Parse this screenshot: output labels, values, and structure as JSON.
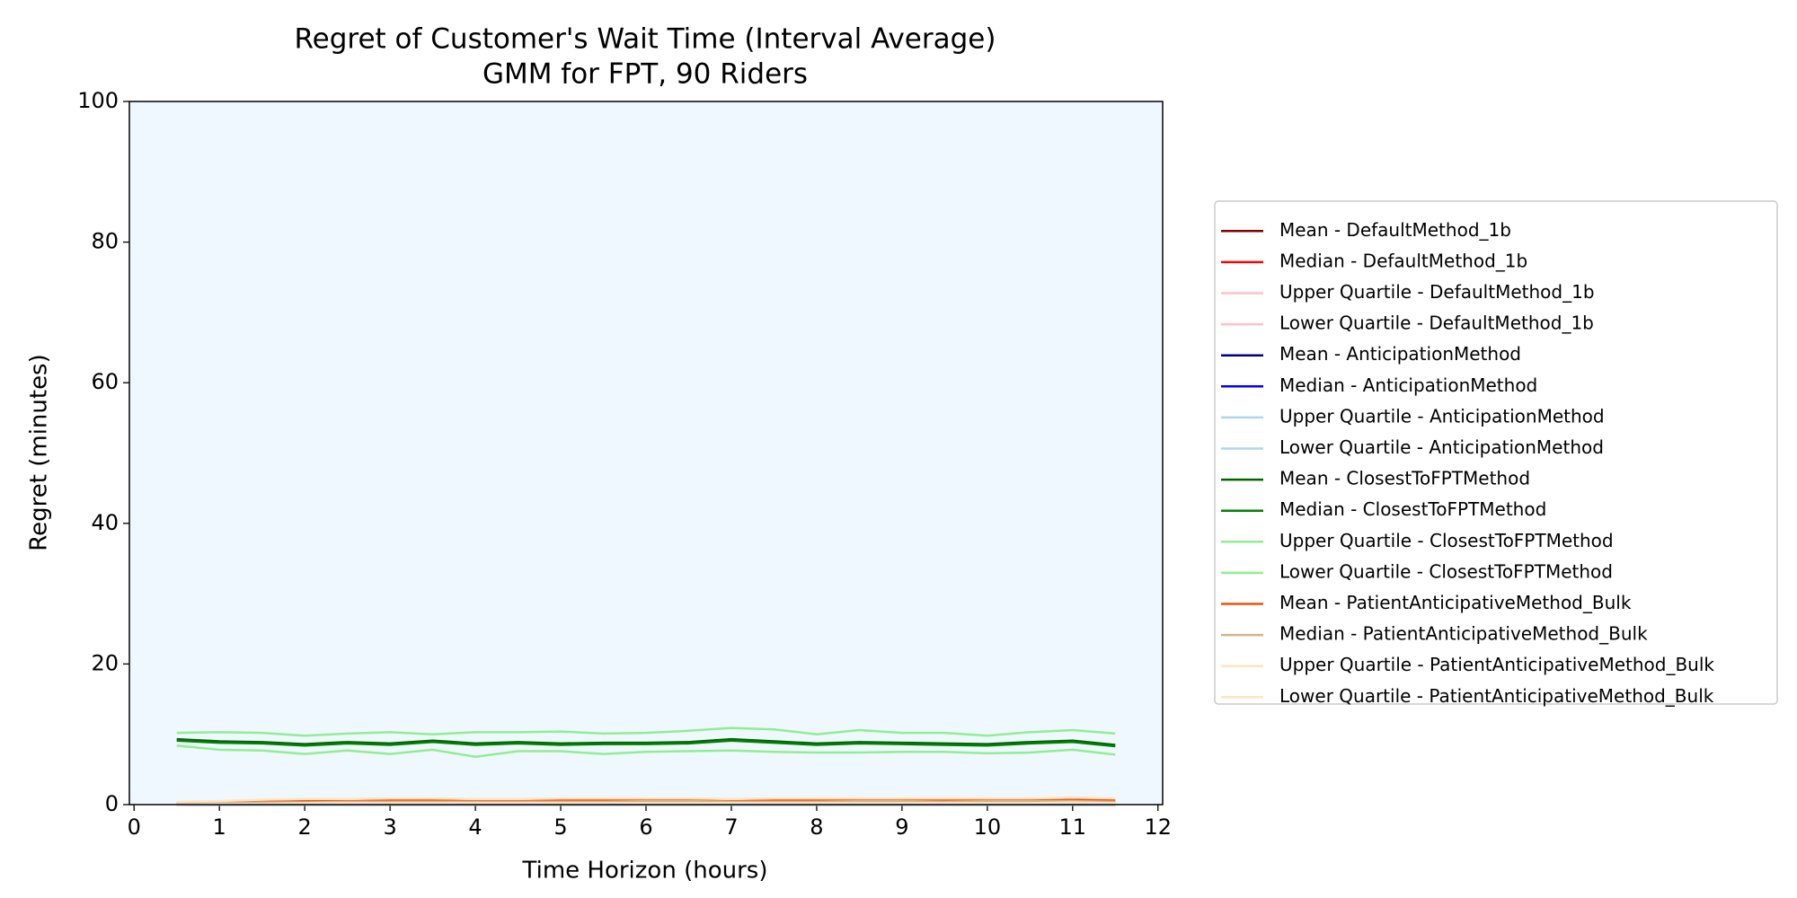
{
  "chart_data": {
    "type": "line",
    "title": "Regret of Customer's Wait Time (Interval Average)",
    "subtitle": "GMM for FPT, 90 Riders",
    "xlabel": "Time Horizon (hours)",
    "ylabel": "Regret (minutes)",
    "x": [
      0.5,
      1,
      1.5,
      2,
      2.5,
      3,
      3.5,
      4,
      4.5,
      5,
      5.5,
      6,
      6.5,
      7,
      7.5,
      8,
      8.5,
      9,
      9.5,
      10,
      10.5,
      11,
      11.5
    ],
    "xlim": [
      -0.055,
      12.055
    ],
    "xticks": [
      0,
      1,
      2,
      3,
      4,
      5,
      6,
      7,
      8,
      9,
      10,
      11,
      12
    ],
    "ylim": [
      0,
      100
    ],
    "yticks": [
      0,
      20,
      40,
      60,
      80,
      100
    ],
    "grid": false,
    "legend": "outside right",
    "background": "#f0f8ff",
    "series": [
      {
        "name": "Mean - DefaultMethod_1b",
        "color": "#800000",
        "values": [
          0,
          0,
          0,
          0,
          0,
          0,
          0,
          0,
          0,
          0,
          0,
          0,
          0,
          0,
          0,
          0,
          0,
          0,
          0,
          0,
          0,
          0,
          0
        ]
      },
      {
        "name": "Median - DefaultMethod_1b",
        "color": "#ff0000",
        "values": [
          0,
          0,
          0,
          0,
          0,
          0,
          0,
          0,
          0,
          0,
          0,
          0,
          0,
          0,
          0,
          0,
          0,
          0,
          0,
          0,
          0,
          0,
          0
        ]
      },
      {
        "name": "Upper Quartile - DefaultMethod_1b",
        "color": "#ffc0cb",
        "values": [
          0,
          0,
          0,
          0,
          0,
          0,
          0,
          0,
          0,
          0,
          0,
          0,
          0,
          0,
          0,
          0,
          0,
          0,
          0,
          0,
          0,
          0,
          0
        ]
      },
      {
        "name": "Lower Quartile - DefaultMethod_1b",
        "color": "#ffc0cb",
        "values": [
          0,
          0,
          0,
          0,
          0,
          0,
          0,
          0,
          0,
          0,
          0,
          0,
          0,
          0,
          0,
          0,
          0,
          0,
          0,
          0,
          0,
          0,
          0
        ]
      },
      {
        "name": "Mean - AnticipationMethod",
        "color": "#000080",
        "values": [
          0,
          0,
          0,
          0,
          0,
          0,
          0,
          0,
          0,
          0,
          0,
          0,
          0,
          0,
          0,
          0,
          0,
          0,
          0,
          0,
          0,
          0,
          0
        ]
      },
      {
        "name": "Median - AnticipationMethod",
        "color": "#0000ff",
        "values": [
          0,
          0,
          0,
          0,
          0,
          0,
          0,
          0,
          0,
          0,
          0,
          0,
          0,
          0,
          0,
          0,
          0,
          0,
          0,
          0,
          0,
          0,
          0
        ]
      },
      {
        "name": "Upper Quartile - AnticipationMethod",
        "color": "#add8e6",
        "values": [
          0,
          0,
          0,
          0,
          0,
          0,
          0,
          0,
          0,
          0,
          0,
          0,
          0,
          0,
          0,
          0,
          0,
          0,
          0,
          0,
          0,
          0,
          0
        ]
      },
      {
        "name": "Lower Quartile - AnticipationMethod",
        "color": "#add8e6",
        "values": [
          0,
          0,
          0,
          0,
          0,
          0,
          0,
          0,
          0,
          0,
          0,
          0,
          0,
          0,
          0,
          0,
          0,
          0,
          0,
          0,
          0,
          0,
          0
        ]
      },
      {
        "name": "Mean - ClosestToFPTMethod",
        "color": "#006400",
        "values": [
          9.3,
          9.0,
          8.9,
          8.6,
          8.9,
          8.7,
          9.1,
          8.7,
          8.9,
          8.7,
          8.8,
          8.8,
          8.9,
          9.3,
          9.0,
          8.7,
          8.9,
          8.8,
          8.7,
          8.6,
          8.9,
          9.1,
          8.5
        ]
      },
      {
        "name": "Median - ClosestToFPTMethod",
        "color": "#008000",
        "values": [
          9.1,
          8.8,
          8.7,
          8.4,
          8.7,
          8.5,
          8.9,
          8.5,
          8.7,
          8.5,
          8.6,
          8.6,
          8.7,
          9.1,
          8.8,
          8.5,
          8.7,
          8.6,
          8.5,
          8.4,
          8.7,
          8.9,
          8.3
        ]
      },
      {
        "name": "Upper Quartile - ClosestToFPTMethod",
        "color": "#90ee90",
        "values": [
          10.2,
          10.3,
          10.2,
          9.8,
          10.1,
          10.3,
          10.0,
          10.3,
          10.3,
          10.4,
          10.1,
          10.2,
          10.5,
          10.9,
          10.7,
          10.0,
          10.6,
          10.2,
          10.2,
          9.8,
          10.3,
          10.6,
          10.1
        ]
      },
      {
        "name": "Lower Quartile - ClosestToFPTMethod",
        "color": "#90ee90",
        "values": [
          8.4,
          7.8,
          7.7,
          7.2,
          7.7,
          7.2,
          7.8,
          6.8,
          7.6,
          7.6,
          7.2,
          7.5,
          7.6,
          7.7,
          7.5,
          7.4,
          7.4,
          7.5,
          7.5,
          7.3,
          7.4,
          7.8,
          7.1
        ]
      },
      {
        "name": "Mean - PatientAnticipativeMethod_Bulk",
        "color": "#e6550d",
        "values": [
          0.2,
          0.3,
          0.4,
          0.5,
          0.5,
          0.6,
          0.6,
          0.5,
          0.5,
          0.6,
          0.6,
          0.6,
          0.6,
          0.5,
          0.6,
          0.6,
          0.6,
          0.6,
          0.6,
          0.6,
          0.6,
          0.7,
          0.6
        ]
      },
      {
        "name": "Median - PatientAnticipativeMethod_Bulk",
        "color": "#d2b48c",
        "values": [
          0.1,
          0.2,
          0.3,
          0.3,
          0.4,
          0.4,
          0.4,
          0.4,
          0.4,
          0.4,
          0.4,
          0.5,
          0.5,
          0.4,
          0.4,
          0.4,
          0.5,
          0.5,
          0.4,
          0.5,
          0.5,
          0.5,
          0.4
        ]
      },
      {
        "name": "Upper Quartile - PatientAnticipativeMethod_Bulk",
        "color": "#ffe4c4",
        "values": [
          0.4,
          0.5,
          0.7,
          0.8,
          0.8,
          0.9,
          0.9,
          0.8,
          0.8,
          0.9,
          0.9,
          0.9,
          0.9,
          0.8,
          0.9,
          0.9,
          0.9,
          0.9,
          0.9,
          0.9,
          0.9,
          1.0,
          0.9
        ]
      },
      {
        "name": "Lower Quartile - PatientAnticipativeMethod_Bulk",
        "color": "#ffe4c4",
        "values": [
          0.0,
          0.1,
          0.1,
          0.2,
          0.2,
          0.2,
          0.2,
          0.2,
          0.2,
          0.2,
          0.2,
          0.2,
          0.2,
          0.2,
          0.2,
          0.2,
          0.2,
          0.2,
          0.2,
          0.2,
          0.2,
          0.3,
          0.2
        ]
      }
    ]
  }
}
